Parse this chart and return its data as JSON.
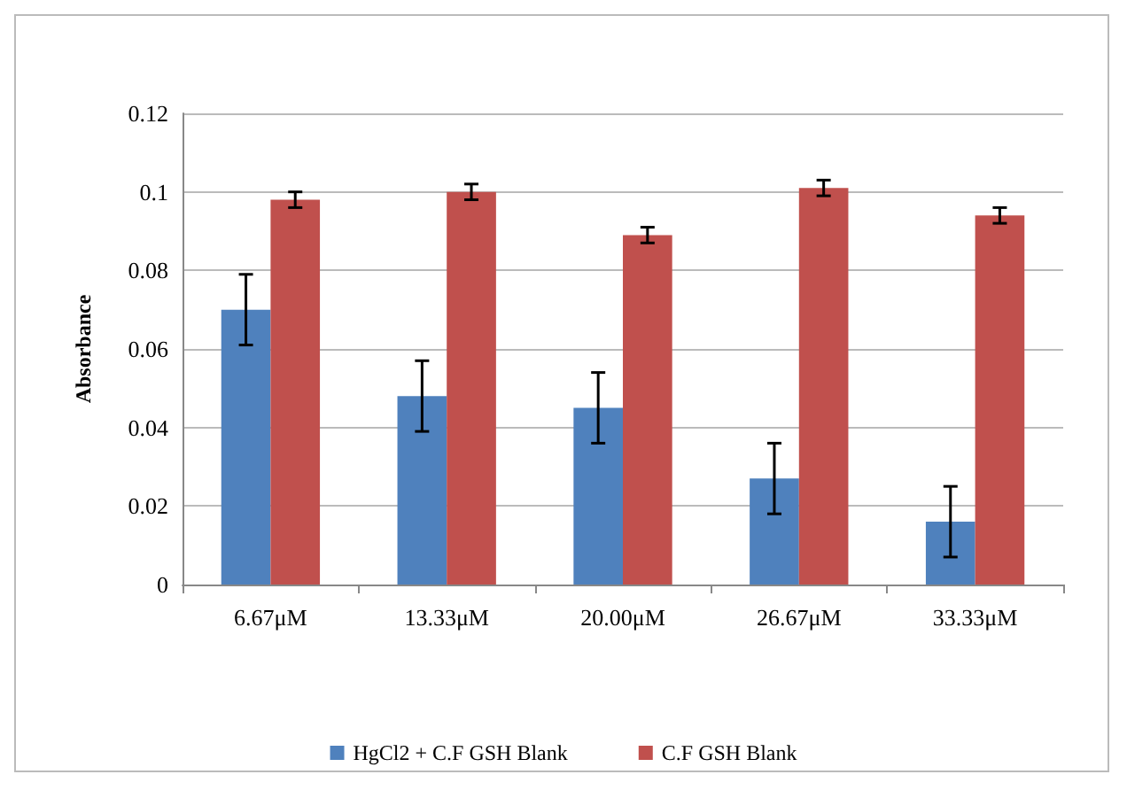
{
  "chart_data": {
    "type": "bar",
    "ylabel": "Absorbance",
    "categories": [
      "6.67μM",
      "13.33μM",
      "20.00μM",
      "26.67μM",
      "33.33μM"
    ],
    "series": [
      {
        "name": "HgCl2 + C.F GSH Blank",
        "color": "#4f81bd",
        "values": [
          0.07,
          0.048,
          0.045,
          0.027,
          0.016
        ],
        "errors": [
          0.009,
          0.009,
          0.009,
          0.009,
          0.009
        ]
      },
      {
        "name": "C.F GSH Blank",
        "color": "#c0504d",
        "values": [
          0.098,
          0.1,
          0.089,
          0.101,
          0.094
        ],
        "errors": [
          0.002,
          0.002,
          0.002,
          0.002,
          0.002
        ]
      }
    ],
    "ylim": [
      0,
      0.12
    ],
    "yticks": [
      0,
      0.02,
      0.04,
      0.06,
      0.08,
      0.1,
      0.12
    ],
    "grid": "y",
    "legend": "bottom"
  }
}
